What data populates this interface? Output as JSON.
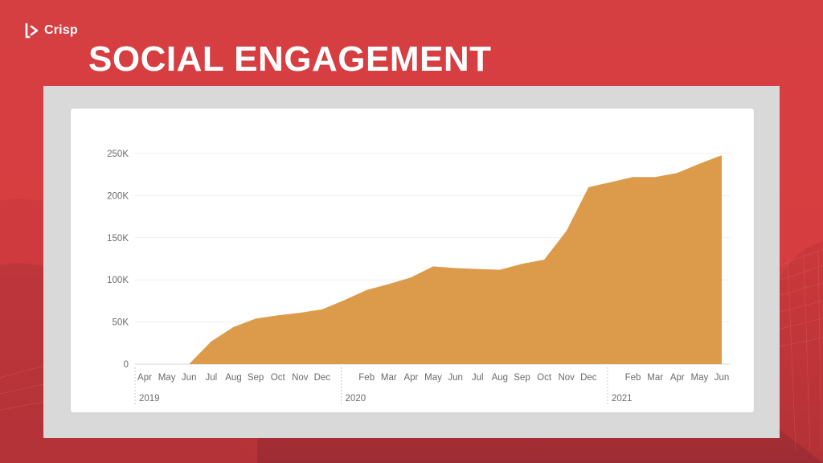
{
  "brand": {
    "name": "Crisp",
    "icon": "crisp-logo-icon"
  },
  "page_title": "SOCIAL ENGAGEMENT",
  "colors": {
    "background": "#d63f42",
    "area_fill": "#dc9b4a",
    "frame": "#d9d9d9"
  },
  "chart_data": {
    "type": "area",
    "title": "",
    "xlabel": "",
    "ylabel": "",
    "ylim": [
      0,
      250000
    ],
    "grid": true,
    "legend": "none",
    "y_ticks": [
      {
        "value": 0,
        "label": "0"
      },
      {
        "value": 50000,
        "label": "50K"
      },
      {
        "value": 100000,
        "label": "100K"
      },
      {
        "value": 150000,
        "label": "150K"
      },
      {
        "value": 200000,
        "label": "200K"
      },
      {
        "value": 250000,
        "label": "250K"
      }
    ],
    "x_ticks": [
      "Apr",
      "May",
      "Jun",
      "Jul",
      "Aug",
      "Sep",
      "Oct",
      "Nov",
      "Dec",
      "Feb",
      "Mar",
      "Apr",
      "May",
      "Jun",
      "Jul",
      "Aug",
      "Sep",
      "Oct",
      "Nov",
      "Dec",
      "Feb",
      "Mar",
      "Apr",
      "May",
      "Jun"
    ],
    "x_years": [
      "2019",
      "2020",
      "2021"
    ],
    "series": [
      {
        "x": [
          "2019-06",
          "2019-07",
          "2019-08",
          "2019-09",
          "2019-10",
          "2019-11",
          "2019-12",
          "2020-01",
          "2020-02",
          "2020-03",
          "2020-04",
          "2020-05",
          "2020-06",
          "2020-07",
          "2020-08",
          "2020-09",
          "2020-10",
          "2020-11",
          "2020-12",
          "2021-01",
          "2021-02",
          "2021-03",
          "2021-04",
          "2021-05",
          "2021-06"
        ],
        "values": [
          0,
          27000,
          44000,
          54000,
          58000,
          61000,
          65000,
          76000,
          88000,
          95000,
          103000,
          116000,
          114000,
          113000,
          112000,
          119000,
          124000,
          158000,
          210000,
          216000,
          222000,
          222000,
          227000,
          238000,
          248000
        ]
      }
    ]
  }
}
